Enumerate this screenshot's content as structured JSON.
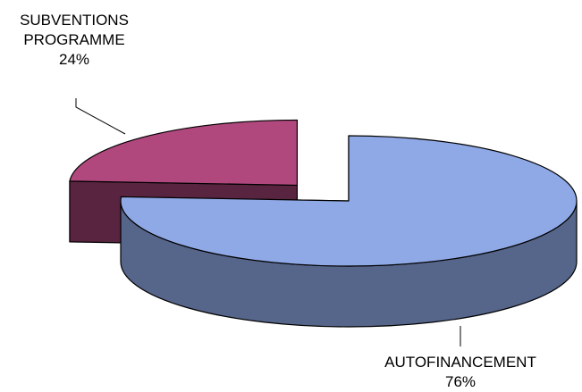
{
  "chart_data": {
    "type": "pie3d",
    "categories": [
      "SUBVENTIONS PROGRAMME",
      "AUTOFINANCEMENT"
    ],
    "values": [
      24,
      76
    ],
    "value_labels": [
      "24%",
      "76%"
    ],
    "colors": [
      "#b0487e",
      "#8fa9e6"
    ],
    "exploded": [
      true,
      false
    ]
  }
}
